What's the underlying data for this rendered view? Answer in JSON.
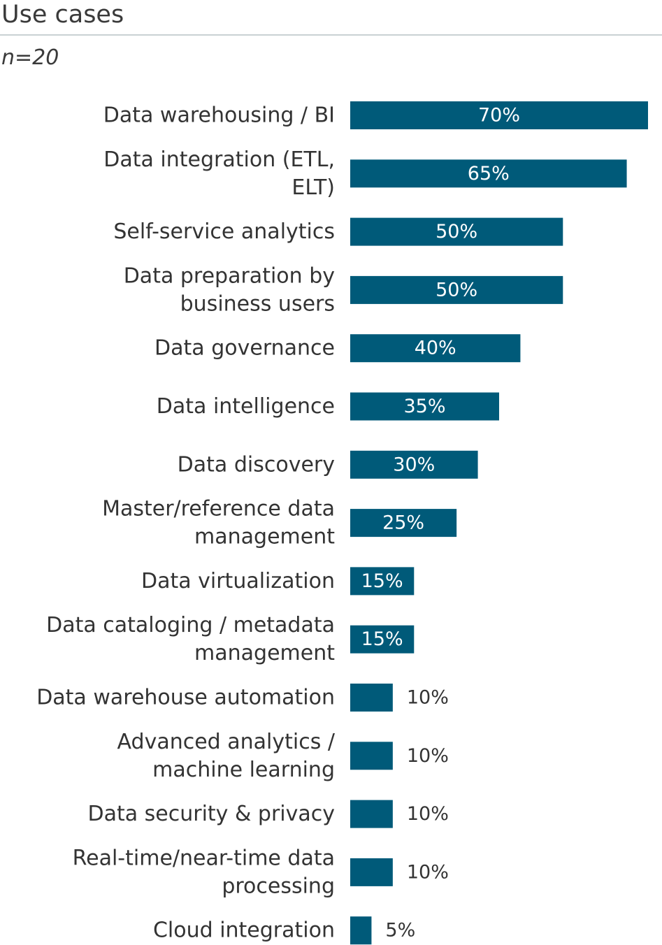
{
  "title": "Use cases",
  "subtitle": "n=20",
  "colors": {
    "bar": "#005a79",
    "label_inside": "#ffffff",
    "label_outside": "#333333"
  },
  "chart_data": {
    "type": "bar",
    "orientation": "horizontal",
    "categories": [
      "Data warehousing / BI",
      "Data integration (ETL, ELT)",
      "Self-service analytics",
      "Data preparation by business users",
      "Data governance",
      "Data intelligence",
      "Data discovery",
      "Master/reference data management",
      "Data virtualization",
      "Data cataloging / metadata management",
      "Data warehouse automation",
      "Advanced analytics / machine learning",
      "Data security & privacy",
      "Real-time/near-time data processing",
      "Cloud integration"
    ],
    "category_lines": [
      [
        "Data warehousing / BI"
      ],
      [
        "Data integration (ETL,",
        "ELT)"
      ],
      [
        "Self-service analytics"
      ],
      [
        "Data preparation by",
        "business users"
      ],
      [
        "Data governance"
      ],
      [
        "Data intelligence"
      ],
      [
        "Data discovery"
      ],
      [
        "Master/reference data",
        "management"
      ],
      [
        "Data virtualization"
      ],
      [
        "Data cataloging / metadata",
        "management"
      ],
      [
        "Data warehouse automation"
      ],
      [
        "Advanced analytics /",
        "machine learning"
      ],
      [
        "Data security & privacy"
      ],
      [
        "Real-time/near-time data",
        "processing"
      ],
      [
        "Cloud integration"
      ]
    ],
    "values": [
      70,
      65,
      50,
      50,
      40,
      35,
      30,
      25,
      15,
      15,
      10,
      10,
      10,
      10,
      5
    ],
    "value_labels": [
      "70%",
      "65%",
      "50%",
      "50%",
      "40%",
      "35%",
      "30%",
      "25%",
      "15%",
      "15%",
      "10%",
      "10%",
      "10%",
      "10%",
      "5%"
    ],
    "xlim": [
      0,
      70
    ],
    "grid": false,
    "legend": "none"
  }
}
